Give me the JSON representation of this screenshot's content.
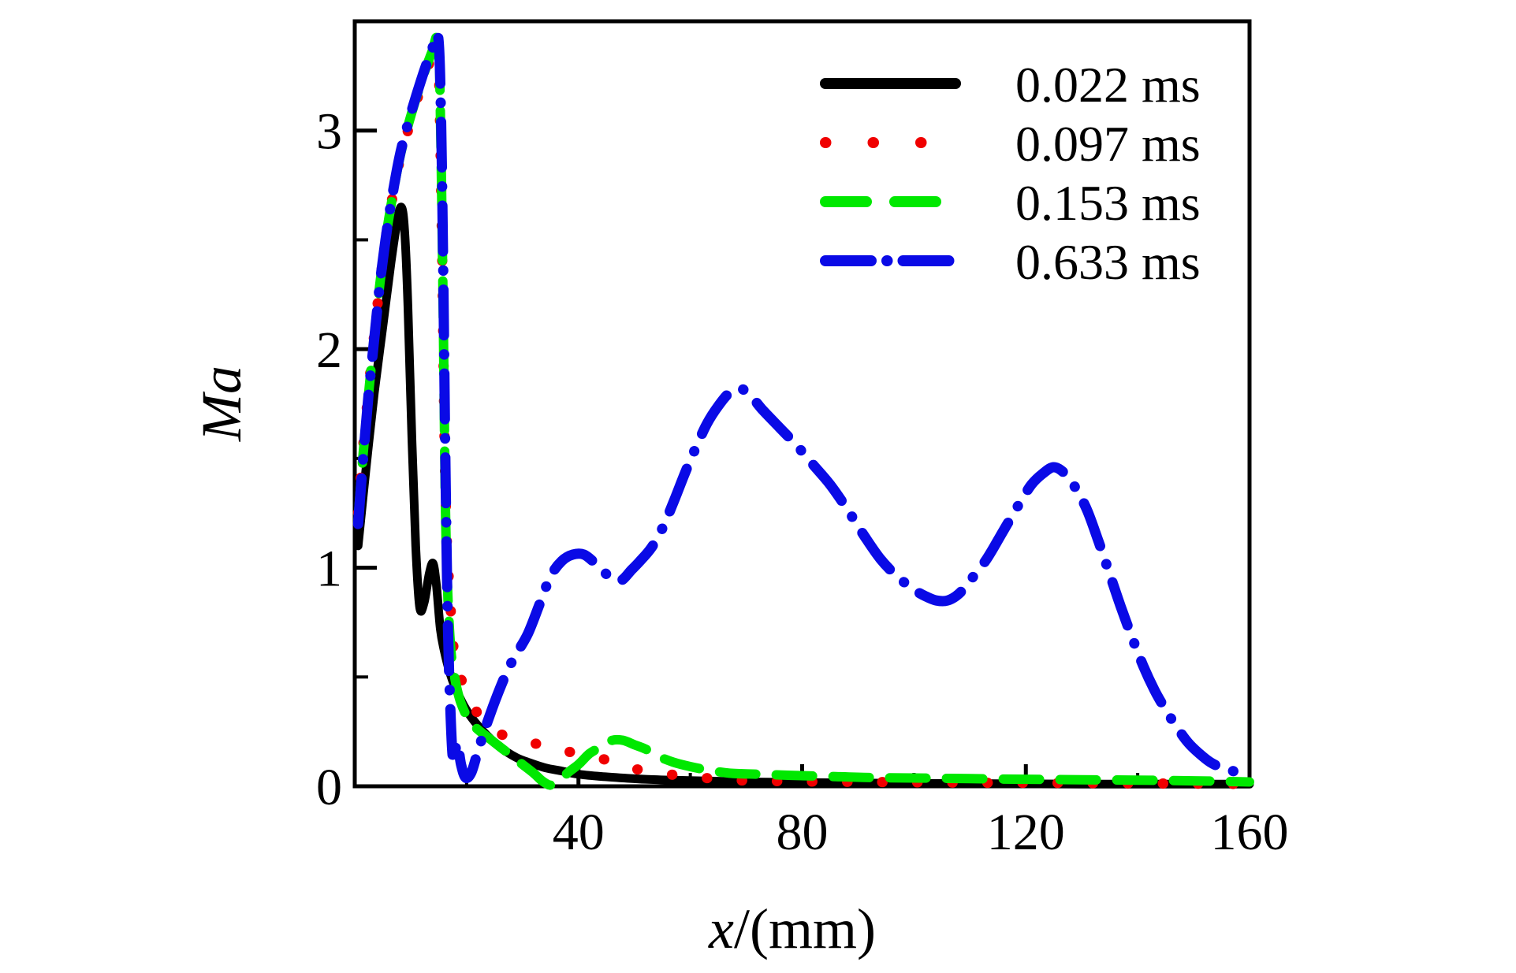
{
  "labels": {
    "y": "Ma",
    "x_var": "x",
    "x_rest": "/(mm)"
  },
  "chart_data": {
    "type": "line",
    "title": "",
    "xlabel": "x/(mm)",
    "ylabel": "Ma",
    "xlim": [
      0,
      160
    ],
    "ylim": [
      0,
      3.5
    ],
    "xticks": [
      40,
      80,
      120,
      160
    ],
    "xticks_minor": [
      20,
      60,
      100,
      140
    ],
    "yticks": [
      0,
      1,
      2,
      3
    ],
    "yticks_minor": [
      0.5,
      1.5,
      2.5
    ],
    "grid": false,
    "legend_position": "top-right",
    "axis_color": "#000000",
    "series": [
      {
        "name": "0.022 ms",
        "color": "#000000",
        "style": "solid",
        "width": 11,
        "points": [
          [
            0.6,
            1.1
          ],
          [
            2,
            1.45
          ],
          [
            3.5,
            1.8
          ],
          [
            5,
            2.1
          ],
          [
            6.5,
            2.4
          ],
          [
            7.5,
            2.57
          ],
          [
            8.3,
            2.65
          ],
          [
            8.9,
            2.55
          ],
          [
            9.5,
            2.2
          ],
          [
            10.2,
            1.6
          ],
          [
            10.9,
            1.1
          ],
          [
            11.6,
            0.82
          ],
          [
            12.4,
            0.84
          ],
          [
            13.3,
            0.97
          ],
          [
            14,
            1.02
          ],
          [
            14.6,
            0.92
          ],
          [
            15.3,
            0.72
          ],
          [
            16,
            0.62
          ],
          [
            17,
            0.52
          ],
          [
            18,
            0.45
          ],
          [
            19.5,
            0.37
          ],
          [
            21,
            0.31
          ],
          [
            23,
            0.25
          ],
          [
            25,
            0.2
          ],
          [
            27,
            0.16
          ],
          [
            29,
            0.13
          ],
          [
            31,
            0.11
          ],
          [
            34,
            0.085
          ],
          [
            37,
            0.07
          ],
          [
            40,
            0.055
          ],
          [
            44,
            0.045
          ],
          [
            48,
            0.038
          ],
          [
            52,
            0.032
          ],
          [
            57,
            0.028
          ],
          [
            63,
            0.024
          ],
          [
            70,
            0.02
          ],
          [
            78,
            0.018
          ],
          [
            88,
            0.015
          ],
          [
            100,
            0.013
          ],
          [
            115,
            0.012
          ],
          [
            130,
            0.01
          ],
          [
            145,
            0.01
          ],
          [
            160,
            0.01
          ]
        ]
      },
      {
        "name": "0.097 ms",
        "color": "#f00000",
        "style": "dotted",
        "width": 13,
        "points": [
          [
            0.6,
            1.25
          ],
          [
            1.5,
            1.55
          ],
          [
            2.5,
            1.82
          ],
          [
            3.5,
            2.07
          ],
          [
            4.5,
            2.3
          ],
          [
            5.5,
            2.5
          ],
          [
            6.5,
            2.66
          ],
          [
            8,
            2.86
          ],
          [
            9.5,
            3.0
          ],
          [
            11,
            3.13
          ],
          [
            12.5,
            3.25
          ],
          [
            13.8,
            3.34
          ],
          [
            14.8,
            3.4
          ],
          [
            15.2,
            3.1
          ],
          [
            15.7,
            2.3
          ],
          [
            16.1,
            1.5
          ],
          [
            16.5,
            1.1
          ],
          [
            17,
            0.88
          ],
          [
            17.5,
            0.67
          ],
          [
            18.3,
            0.55
          ],
          [
            19.5,
            0.46
          ],
          [
            21,
            0.38
          ],
          [
            22.5,
            0.31
          ],
          [
            24,
            0.27
          ],
          [
            26,
            0.24
          ],
          [
            28,
            0.22
          ],
          [
            31,
            0.2
          ],
          [
            34,
            0.19
          ],
          [
            36,
            0.18
          ],
          [
            38,
            0.16
          ],
          [
            40,
            0.15
          ],
          [
            42,
            0.14
          ],
          [
            45,
            0.12
          ],
          [
            48,
            0.09
          ],
          [
            51,
            0.075
          ],
          [
            54,
            0.06
          ],
          [
            58,
            0.05
          ],
          [
            62,
            0.04
          ],
          [
            66,
            0.03
          ],
          [
            72,
            0.025
          ],
          [
            80,
            0.022
          ],
          [
            90,
            0.02
          ],
          [
            100,
            0.018
          ],
          [
            112,
            0.016
          ],
          [
            125,
            0.015
          ],
          [
            138,
            0.013
          ],
          [
            150,
            0.012
          ],
          [
            160,
            0.01
          ]
        ]
      },
      {
        "name": "0.153 ms",
        "color": "#00e800",
        "style": "dashed",
        "width": 12,
        "points": [
          [
            0.6,
            1.22
          ],
          [
            1.5,
            1.52
          ],
          [
            2.5,
            1.8
          ],
          [
            3.5,
            2.06
          ],
          [
            4.5,
            2.3
          ],
          [
            5.5,
            2.5
          ],
          [
            6.5,
            2.66
          ],
          [
            8,
            2.87
          ],
          [
            9.5,
            3.02
          ],
          [
            11,
            3.15
          ],
          [
            12.5,
            3.27
          ],
          [
            13.8,
            3.36
          ],
          [
            14.9,
            3.42
          ],
          [
            15.3,
            3.1
          ],
          [
            15.8,
            2.2
          ],
          [
            16.2,
            1.3
          ],
          [
            16.6,
            0.9
          ],
          [
            17.2,
            0.62
          ],
          [
            18,
            0.48
          ],
          [
            19,
            0.38
          ],
          [
            20.5,
            0.3
          ],
          [
            22,
            0.26
          ],
          [
            24,
            0.22
          ],
          [
            26,
            0.18
          ],
          [
            28,
            0.14
          ],
          [
            30,
            0.1
          ],
          [
            32,
            0.06
          ],
          [
            33.5,
            0.025
          ],
          [
            35,
            0.005
          ],
          [
            36.5,
            0.02
          ],
          [
            38,
            0.06
          ],
          [
            40,
            0.1
          ],
          [
            42,
            0.15
          ],
          [
            44,
            0.18
          ],
          [
            46,
            0.21
          ],
          [
            48,
            0.21
          ],
          [
            50,
            0.19
          ],
          [
            52,
            0.17
          ],
          [
            54,
            0.14
          ],
          [
            57,
            0.11
          ],
          [
            60,
            0.09
          ],
          [
            63,
            0.075
          ],
          [
            67,
            0.06
          ],
          [
            72,
            0.055
          ],
          [
            78,
            0.05
          ],
          [
            85,
            0.045
          ],
          [
            92,
            0.04
          ],
          [
            100,
            0.038
          ],
          [
            110,
            0.035
          ],
          [
            120,
            0.032
          ],
          [
            130,
            0.03
          ],
          [
            140,
            0.028
          ],
          [
            150,
            0.025
          ],
          [
            160,
            0.02
          ]
        ]
      },
      {
        "name": "0.633 ms",
        "color": "#0a0ae6",
        "style": "dashdot",
        "width": 13,
        "points": [
          [
            0.6,
            1.2
          ],
          [
            1.5,
            1.5
          ],
          [
            2.5,
            1.8
          ],
          [
            3.5,
            2.05
          ],
          [
            4.5,
            2.3
          ],
          [
            5.5,
            2.5
          ],
          [
            6.5,
            2.67
          ],
          [
            8,
            2.88
          ],
          [
            9.5,
            3.03
          ],
          [
            11,
            3.16
          ],
          [
            12.5,
            3.28
          ],
          [
            13.8,
            3.37
          ],
          [
            14.9,
            3.43
          ],
          [
            15.4,
            3.1
          ],
          [
            15.8,
            2.4
          ],
          [
            16.2,
            1.5
          ],
          [
            16.6,
            0.8
          ],
          [
            17.1,
            0.35
          ],
          [
            17.6,
            0.12
          ],
          [
            18.3,
            0.2
          ],
          [
            19,
            0.1
          ],
          [
            19.8,
            0.04
          ],
          [
            20.8,
            0.06
          ],
          [
            21.8,
            0.14
          ],
          [
            23,
            0.24
          ],
          [
            24.5,
            0.35
          ],
          [
            26,
            0.45
          ],
          [
            27.5,
            0.54
          ],
          [
            29,
            0.61
          ],
          [
            31,
            0.7
          ],
          [
            33,
            0.83
          ],
          [
            35,
            0.96
          ],
          [
            37,
            1.03
          ],
          [
            39,
            1.06
          ],
          [
            41,
            1.06
          ],
          [
            43,
            1.02
          ],
          [
            45.5,
            0.96
          ],
          [
            47.5,
            0.94
          ],
          [
            49.5,
            0.99
          ],
          [
            51,
            1.03
          ],
          [
            53,
            1.09
          ],
          [
            55,
            1.18
          ],
          [
            57,
            1.3
          ],
          [
            59,
            1.43
          ],
          [
            61,
            1.55
          ],
          [
            63,
            1.66
          ],
          [
            65,
            1.74
          ],
          [
            67,
            1.8
          ],
          [
            69,
            1.82
          ],
          [
            71,
            1.78
          ],
          [
            73,
            1.72
          ],
          [
            76,
            1.64
          ],
          [
            79,
            1.56
          ],
          [
            82,
            1.47
          ],
          [
            85,
            1.38
          ],
          [
            88,
            1.27
          ],
          [
            91,
            1.15
          ],
          [
            94,
            1.04
          ],
          [
            97,
            0.96
          ],
          [
            100,
            0.9
          ],
          [
            102,
            0.87
          ],
          [
            104,
            0.85
          ],
          [
            106,
            0.85
          ],
          [
            108,
            0.88
          ],
          [
            110,
            0.94
          ],
          [
            113,
            1.04
          ],
          [
            116,
            1.17
          ],
          [
            119,
            1.3
          ],
          [
            121,
            1.38
          ],
          [
            123,
            1.43
          ],
          [
            125,
            1.46
          ],
          [
            127,
            1.43
          ],
          [
            129,
            1.36
          ],
          [
            131,
            1.26
          ],
          [
            133,
            1.12
          ],
          [
            135,
            0.97
          ],
          [
            137,
            0.82
          ],
          [
            139,
            0.68
          ],
          [
            141,
            0.55
          ],
          [
            143,
            0.44
          ],
          [
            145,
            0.35
          ],
          [
            147,
            0.27
          ],
          [
            149,
            0.2
          ],
          [
            151,
            0.15
          ],
          [
            153,
            0.11
          ],
          [
            155,
            0.085
          ],
          [
            157,
            0.07
          ],
          [
            160,
            0.05
          ]
        ]
      }
    ]
  }
}
